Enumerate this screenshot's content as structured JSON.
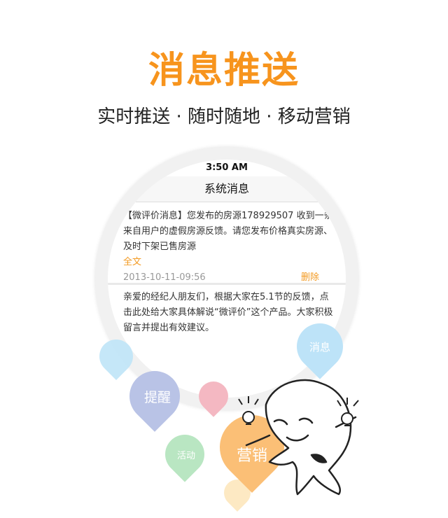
{
  "header": {
    "title": "消息推送",
    "title_color": "#f7941d",
    "subtitle": "实时推送 · 随时随地 · 移动营销"
  },
  "phone": {
    "status_time": "3:50 AM",
    "nav_title": "系统消息",
    "messages": [
      {
        "text": "【微评价消息】您发布的房源178929507 收到一条来自用户的虚假房源反馈。请您发布价格真实房源、及时下架已售房源",
        "full_link": "全文",
        "date": "2013-10-11-09:56",
        "delete": "删除"
      },
      {
        "text": "亲爱的经纪人朋友们，根据大家在5.1节的反馈，点击此处给大家具体解说“微评价”这个产品。大家积极留言并提出有效建议。"
      }
    ]
  },
  "bubbles": {
    "remind": "提醒",
    "activity": "活动",
    "marketing": "营销",
    "message": "消息",
    "colors": {
      "light_blue": "#bfe4f7",
      "purple": "#b9c3e6",
      "pink": "#f4b8c2",
      "green": "#b9e6c2",
      "orange": "#fbbf76",
      "yellow": "#fde9c3",
      "sky": "#bde3f8"
    }
  }
}
